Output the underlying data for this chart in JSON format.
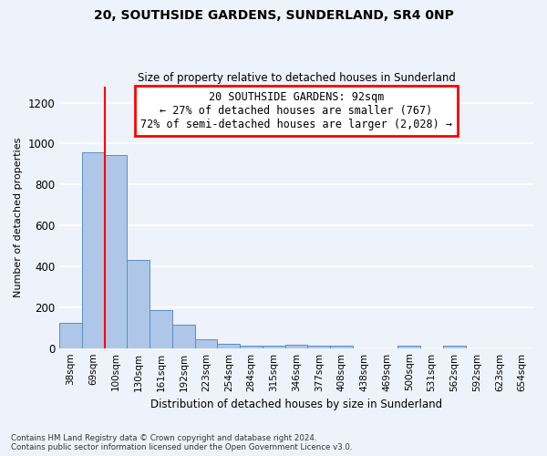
{
  "title1": "20, SOUTHSIDE GARDENS, SUNDERLAND, SR4 0NP",
  "title2": "Size of property relative to detached houses in Sunderland",
  "xlabel": "Distribution of detached houses by size in Sunderland",
  "ylabel": "Number of detached properties",
  "categories": [
    "38sqm",
    "69sqm",
    "100sqm",
    "130sqm",
    "161sqm",
    "192sqm",
    "223sqm",
    "254sqm",
    "284sqm",
    "315sqm",
    "346sqm",
    "377sqm",
    "408sqm",
    "438sqm",
    "469sqm",
    "500sqm",
    "531sqm",
    "562sqm",
    "592sqm",
    "623sqm",
    "654sqm"
  ],
  "values": [
    125,
    955,
    945,
    430,
    185,
    115,
    42,
    20,
    12,
    10,
    15,
    12,
    10,
    0,
    0,
    12,
    0,
    10,
    0,
    0,
    0
  ],
  "bar_color": "#aec6e8",
  "bar_edge_color": "#5a8fc0",
  "annotation_line1": "20 SOUTHSIDE GARDENS: 92sqm",
  "annotation_line2": "← 27% of detached houses are smaller (767)",
  "annotation_line3": "72% of semi-detached houses are larger (2,028) →",
  "ylim": [
    0,
    1280
  ],
  "yticks": [
    0,
    200,
    400,
    600,
    800,
    1000,
    1200
  ],
  "footnote1": "Contains HM Land Registry data © Crown copyright and database right 2024.",
  "footnote2": "Contains public sector information licensed under the Open Government Licence v3.0.",
  "background_color": "#eef2fa",
  "grid_color": "#ffffff"
}
